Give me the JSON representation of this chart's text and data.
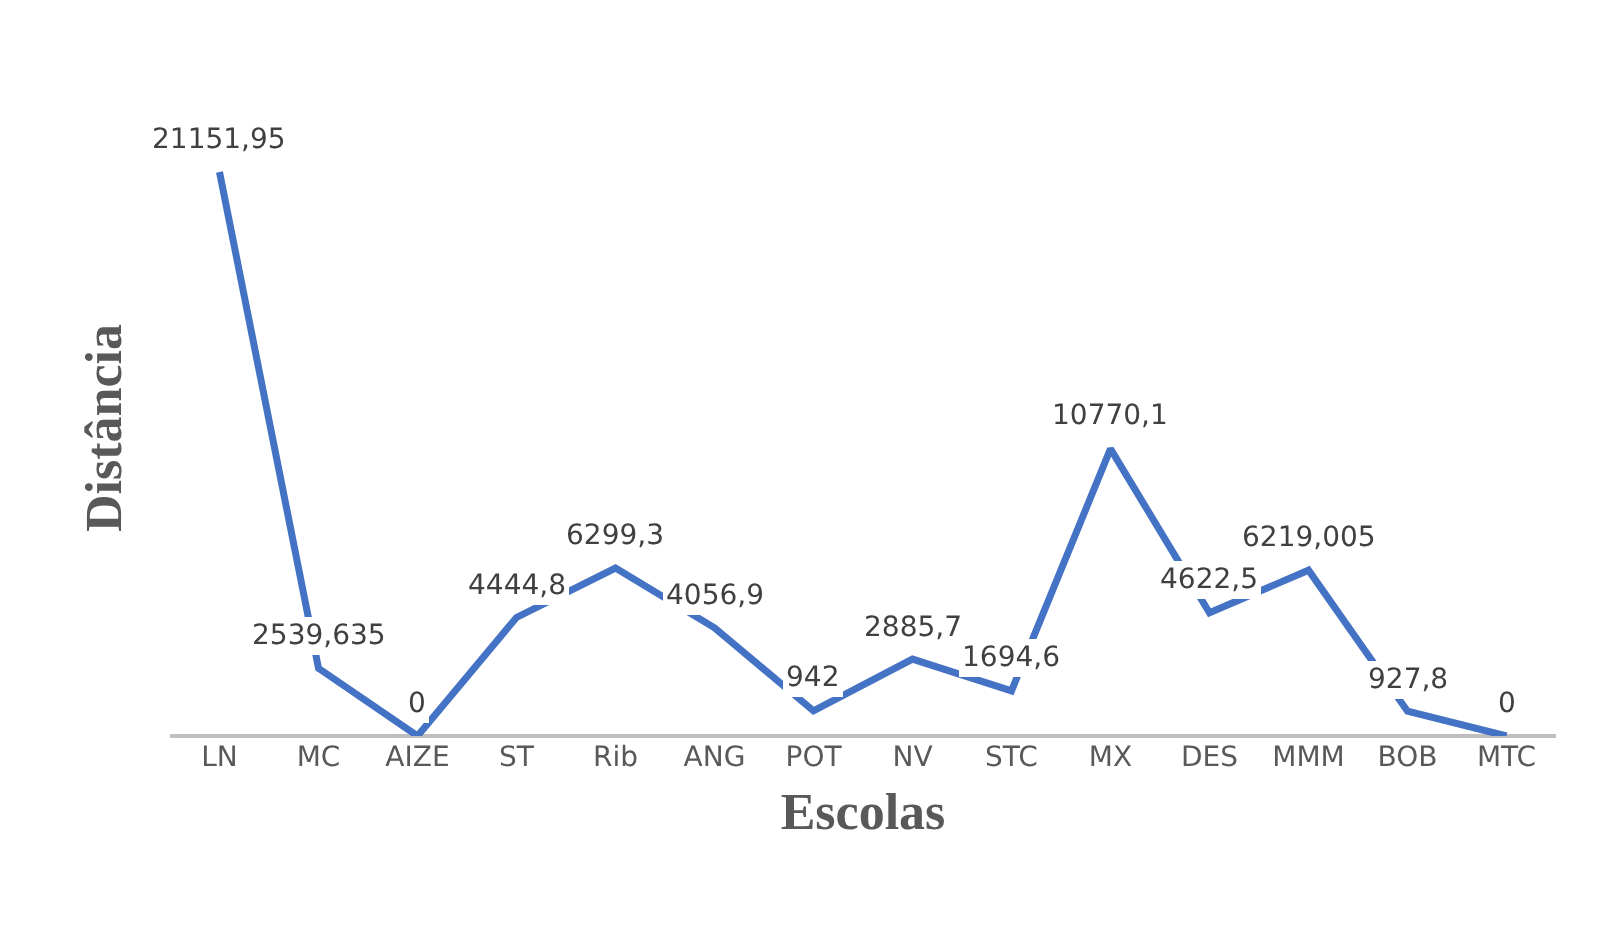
{
  "chart_data": {
    "type": "line",
    "xlabel": "Escolas",
    "ylabel": "Distância",
    "categories": [
      "LN",
      "MC",
      "AIZE",
      "ST",
      "Rib",
      "ANG",
      "POT",
      "NV",
      "STC",
      "MX",
      "DES",
      "MMM",
      "BOB",
      "MTC"
    ],
    "series": [
      {
        "color": "#4472c4",
        "values": [
          21151.95,
          2539.635,
          0,
          4444.8,
          6299.3,
          4056.9,
          942,
          2885.7,
          1694.6,
          10770.1,
          4622.5,
          6219.005,
          927.8,
          0
        ],
        "value_labels": [
          "21151,95",
          "2539,635",
          "0",
          "4444,8",
          "6299,3",
          "4056,9",
          "942",
          "2885,7",
          "1694,6",
          "10770,1",
          "4622,5",
          "6219,005",
          "927,8",
          "0"
        ]
      }
    ],
    "grid": false,
    "marker": "none",
    "line_style": "solid"
  }
}
